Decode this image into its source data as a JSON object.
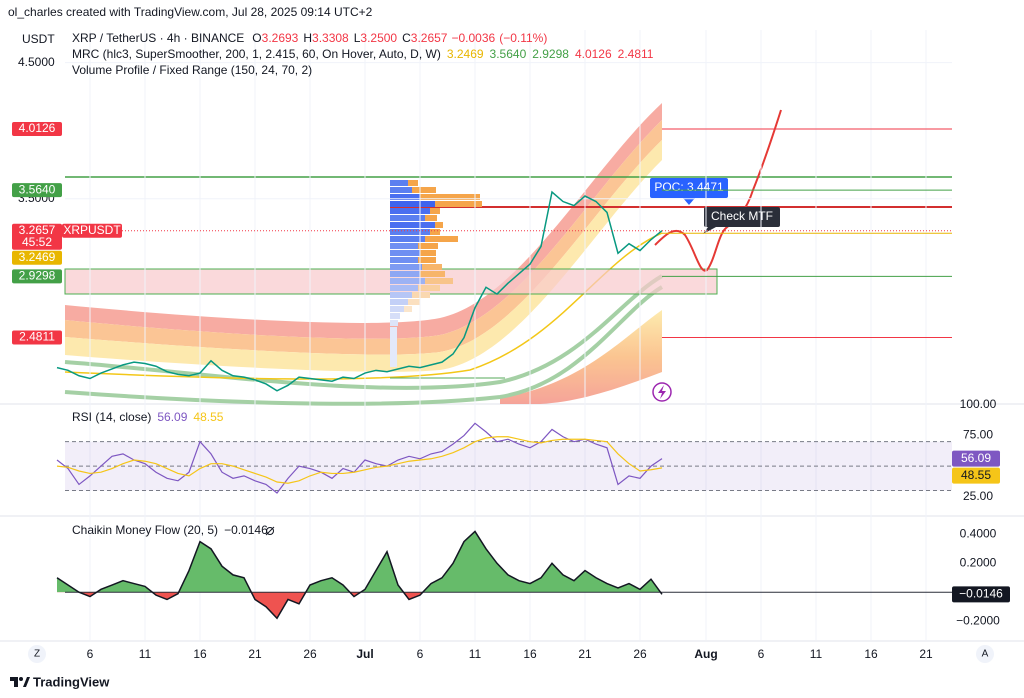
{
  "header": "ol_charles created with TradingView.com, Jul 28, 2025 09:14 UTC+2",
  "footer": "TradingView",
  "corner_left": "Z",
  "corner_right": "A",
  "chart_data": [
    {
      "type": "line",
      "title": "XRP / TetherUS · 4h · BINANCE",
      "unit": "USDT",
      "ohlc_names": [
        "O",
        "H",
        "L",
        "C"
      ],
      "ohlc_values": [
        3.2693,
        3.3308,
        3.25,
        3.2657
      ],
      "ohlc_value_labels": [
        "3.2693",
        "3.3308",
        "3.2500",
        "3.2657"
      ],
      "change": {
        "value": -0.0036,
        "label": "−0.0036"
      },
      "change_pct": {
        "value": -0.11,
        "label": "(−0.11%)"
      },
      "indicators": [
        {
          "title": "MRC (hlc3, SuperSmoother, 200, 1, 2.415, 60, On Hover, Auto, D, W)",
          "values": [
            3.2469,
            3.564,
            2.9298,
            4.0126,
            2.4811
          ],
          "value_labels": [
            "3.2469",
            "3.5640",
            "2.9298",
            "4.0126",
            "2.4811"
          ],
          "colors": [
            "#e8b600",
            "#43a047",
            "#43a047",
            "#f23645",
            "#f23645"
          ]
        },
        {
          "title": "Volume Profile / Fixed Range (150, 24, 70, 2)"
        }
      ],
      "symbol_tag": "XRPUSDT",
      "countdown": "45:52",
      "poc_label": "POC: 3.4471",
      "note": "Check MTF",
      "x": [
        2,
        3,
        4,
        5,
        6,
        7,
        8,
        9,
        10,
        11,
        12,
        13,
        14,
        15,
        16,
        17,
        18,
        19,
        20,
        21,
        22,
        23,
        24,
        25,
        26,
        27,
        28,
        29,
        30,
        31,
        32,
        33,
        34,
        35,
        36,
        37,
        38,
        39,
        40,
        41,
        42,
        43,
        44,
        45,
        46,
        47,
        48,
        49,
        50,
        51,
        52,
        53,
        54,
        55,
        56,
        57
      ],
      "values": [
        2.26,
        2.24,
        2.2,
        2.18,
        2.22,
        2.25,
        2.28,
        2.3,
        2.29,
        2.27,
        2.23,
        2.21,
        2.2,
        2.22,
        2.31,
        2.24,
        2.2,
        2.19,
        2.17,
        2.14,
        2.09,
        2.13,
        2.19,
        2.18,
        2.17,
        2.16,
        2.19,
        2.18,
        2.22,
        2.24,
        2.23,
        2.25,
        2.27,
        2.26,
        2.28,
        2.3,
        2.36,
        2.48,
        2.7,
        2.85,
        2.8,
        2.88,
        2.95,
        3.02,
        3.15,
        3.55,
        3.48,
        3.45,
        3.52,
        3.48,
        3.4,
        3.1,
        3.17,
        3.12,
        3.2,
        3.2657
      ],
      "color": "#089981",
      "xlim": [
        0,
        84
      ],
      "xticks": [
        {
          "value": 5,
          "label": "6"
        },
        {
          "value": 10,
          "label": "11"
        },
        {
          "value": 15,
          "label": "16"
        },
        {
          "value": 20,
          "label": "21"
        },
        {
          "value": 25,
          "label": "26"
        },
        {
          "value": 30,
          "label": "Jul"
        },
        {
          "value": 35,
          "label": "6"
        },
        {
          "value": 40,
          "label": "11"
        },
        {
          "value": 45,
          "label": "16"
        },
        {
          "value": 50,
          "label": "21"
        },
        {
          "value": 55,
          "label": "26"
        },
        {
          "value": 61,
          "label": "Aug"
        },
        {
          "value": 66,
          "label": "6"
        },
        {
          "value": 71,
          "label": "11"
        },
        {
          "value": 76,
          "label": "16"
        },
        {
          "value": 81,
          "label": "21"
        }
      ],
      "ylim": [
        2.0,
        4.74
      ],
      "yticks": [
        {
          "value": 4.5,
          "label": "4.5000"
        },
        {
          "value": 3.5,
          "label": "3.5000"
        }
      ]
    },
    {
      "type": "line",
      "title": "RSI (14, close)",
      "x": [
        2,
        3,
        4,
        5,
        6,
        7,
        8,
        9,
        10,
        11,
        12,
        13,
        14,
        15,
        16,
        17,
        18,
        19,
        20,
        21,
        22,
        23,
        24,
        25,
        26,
        27,
        28,
        29,
        30,
        31,
        32,
        33,
        34,
        35,
        36,
        37,
        38,
        39,
        40,
        41,
        42,
        43,
        44,
        45,
        46,
        47,
        48,
        49,
        50,
        51,
        52,
        53,
        54,
        55,
        56,
        57
      ],
      "series": [
        {
          "color": "#7e57c2",
          "values": [
            55,
            48,
            35,
            42,
            50,
            58,
            60,
            55,
            52,
            45,
            40,
            38,
            45,
            70,
            60,
            45,
            40,
            42,
            38,
            35,
            28,
            40,
            50,
            48,
            45,
            40,
            48,
            45,
            55,
            52,
            50,
            55,
            58,
            56,
            60,
            62,
            68,
            75,
            85,
            78,
            70,
            72,
            68,
            65,
            70,
            80,
            74,
            70,
            72,
            68,
            65,
            35,
            42,
            40,
            50,
            56.09
          ]
        },
        {
          "color": "#f5c518",
          "values": [
            50,
            49,
            46,
            44,
            45,
            48,
            52,
            55,
            54,
            52,
            48,
            44,
            42,
            48,
            52,
            52,
            50,
            47,
            44,
            41,
            37,
            36,
            38,
            42,
            45,
            44,
            44,
            45,
            47,
            49,
            50,
            52,
            54,
            55,
            56,
            58,
            61,
            65,
            70,
            73,
            74,
            74,
            72,
            70,
            69,
            71,
            72,
            72,
            72,
            71,
            70,
            60,
            52,
            46,
            47,
            48.55
          ]
        }
      ],
      "legend_values": [
        56.09,
        48.55
      ],
      "bands": [
        70,
        50,
        30
      ],
      "ylim": [
        10,
        100
      ],
      "yticks": [
        {
          "value": 100,
          "label": "100.00"
        },
        {
          "value": 75,
          "label": "75.00"
        },
        {
          "value": 25,
          "label": "25.00"
        }
      ]
    },
    {
      "type": "area",
      "title": "Chaikin Money Flow (20, 5)",
      "x": [
        2,
        3,
        4,
        5,
        6,
        7,
        8,
        9,
        10,
        11,
        12,
        13,
        14,
        15,
        16,
        17,
        18,
        19,
        20,
        21,
        22,
        23,
        24,
        25,
        26,
        27,
        28,
        29,
        30,
        31,
        32,
        33,
        34,
        35,
        36,
        37,
        38,
        39,
        40,
        41,
        42,
        43,
        44,
        45,
        46,
        47,
        48,
        49,
        50,
        51,
        52,
        53,
        54,
        55,
        56,
        57
      ],
      "values": [
        0.1,
        0.05,
        0,
        -0.03,
        0.02,
        0.05,
        0.08,
        0.06,
        0.04,
        -0.02,
        -0.05,
        -0.01,
        0.15,
        0.35,
        0.3,
        0.18,
        0.12,
        0.1,
        -0.05,
        -0.1,
        -0.18,
        -0.05,
        -0.08,
        0.05,
        0.08,
        0.1,
        0.05,
        -0.03,
        0.02,
        0.15,
        0.28,
        0.05,
        -0.05,
        -0.02,
        0.06,
        0.1,
        0.2,
        0.35,
        0.42,
        0.3,
        0.2,
        0.12,
        0.08,
        0.06,
        0.1,
        0.2,
        0.12,
        0.08,
        0.15,
        0.1,
        0.06,
        0.03,
        0.06,
        0.02,
        0.09,
        -0.0146
      ],
      "last_value": {
        "value": -0.0146,
        "label": "−0.0146"
      },
      "color": "#66bb6a",
      "negative_color": "#ef5350",
      "ylim": [
        -0.33,
        0.52
      ],
      "yticks": [
        {
          "value": 0.4,
          "label": "0.4000"
        },
        {
          "value": 0.2,
          "label": "0.2000"
        },
        {
          "value": -0.2,
          "label": "−0.2000"
        }
      ]
    }
  ]
}
